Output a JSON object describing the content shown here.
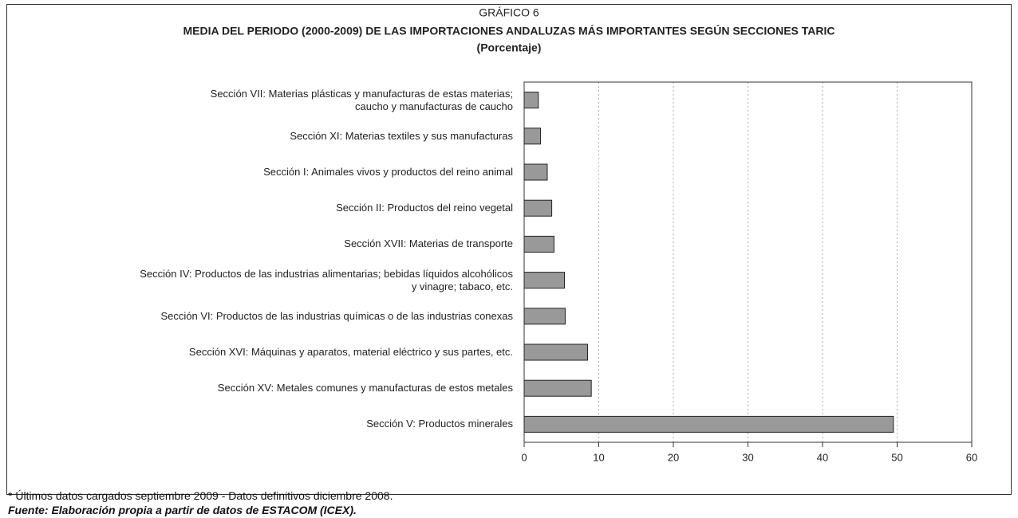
{
  "chart_data": {
    "type": "barh",
    "label": "GRÁFICO 6",
    "title": "MEDIA DEL PERIODO (2000-2009) DE LAS IMPORTACIONES ANDALUZAS MÁS IMPORTANTES SEGÚN SECCIONES TARIC",
    "subtitle": "(Porcentaje)",
    "categories": [
      "Sección VII: Materias plásticas y manufacturas de estas materias;\ncaucho y manufacturas de caucho",
      "Sección XI: Materias textiles y sus manufacturas",
      "Sección I: Animales vivos y productos del reino animal",
      "Sección II: Productos del reino vegetal",
      "Sección XVII: Materias de transporte",
      "Sección IV: Productos de las industrias alimentarias; bebidas líquidos alcohólicos\ny vinagre; tabaco, etc.",
      "Sección VI: Productos de las industrias químicas o de las industrias conexas",
      "Sección XVI: Máquinas y aparatos, material eléctrico y sus partes, etc.",
      "Sección XV: Metales comunes y manufacturas de estos metales",
      "Sección V: Productos minerales"
    ],
    "values": [
      1.9,
      2.2,
      3.1,
      3.7,
      4.0,
      5.4,
      5.5,
      8.5,
      9.0,
      49.5
    ],
    "color": "#999999",
    "xlim": [
      0,
      60
    ],
    "xticks": [
      0,
      10,
      20,
      30,
      40,
      50,
      60
    ],
    "grid": true,
    "footnote": "* Últimos datos cargados septiembre 2009 - Datos definitivos diciembre 2008.",
    "source": "Fuente: Elaboración propia a partir de datos de ESTACOM (ICEX)."
  }
}
